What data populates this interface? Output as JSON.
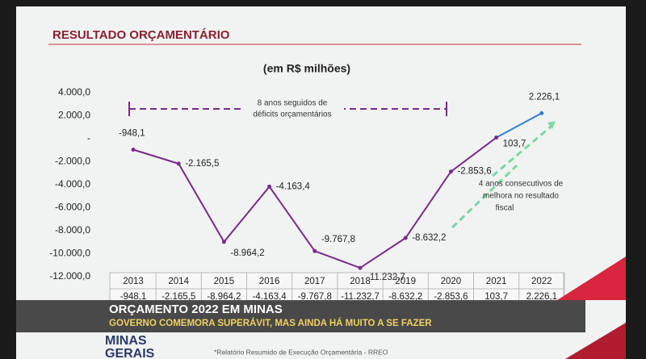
{
  "chart_data": {
    "type": "line",
    "title": "RESULTADO ORÇAMENTÁRIO",
    "subtitle": "(em R$ milhões)",
    "categories": [
      "2013",
      "2014",
      "2015",
      "2016",
      "2017",
      "2018",
      "2019",
      "2020",
      "2021",
      "2022"
    ],
    "values": [
      -948.1,
      -2165.5,
      -8964.2,
      -4163.4,
      -9767.8,
      -11232.7,
      -8632.2,
      -2853.6,
      103.7,
      2226.1
    ],
    "value_labels": [
      "-948,1",
      "-2.165,5",
      "-8.964,2",
      "-4.163,4",
      "-9.767,8",
      "-11.232,7",
      "-8.632,2",
      "-2.853,6",
      "103,7",
      "2.226,1"
    ],
    "color": "#7a2a8a",
    "last_segment_color": "#2f7fd0",
    "ylim": [
      -12000,
      4000
    ],
    "yticks": [
      {
        "value": 4000,
        "label": "4.000,0"
      },
      {
        "value": 2000,
        "label": "2.000,0"
      },
      {
        "value": 0,
        "label": "-"
      },
      {
        "value": -2000,
        "label": "-2.000,0"
      },
      {
        "value": -4000,
        "label": "-4.000,0"
      },
      {
        "value": -6000,
        "label": "-6.000,0"
      },
      {
        "value": -8000,
        "label": "-8.000,0"
      },
      {
        "value": -10000,
        "label": "-10.000,0"
      },
      {
        "value": -12000,
        "label": "-12.000,0"
      }
    ],
    "annotations": [
      "8 anos seguidos de",
      "déficits orçamentários",
      "4 anos consecutivos de",
      "melhora no resultado",
      "fiscal"
    ],
    "source": "*Relatório Resumido de Execução Orçamentária - RREO"
  },
  "overlay": {
    "headline": "ORÇAMENTO 2022 EM MINAS",
    "subheadline": "GOVERNO COMEMORA SUPERÁVIT, MAS AINDA HÁ MUITO A SE FAZER",
    "logo": [
      "MINAS",
      "GERAIS"
    ]
  }
}
